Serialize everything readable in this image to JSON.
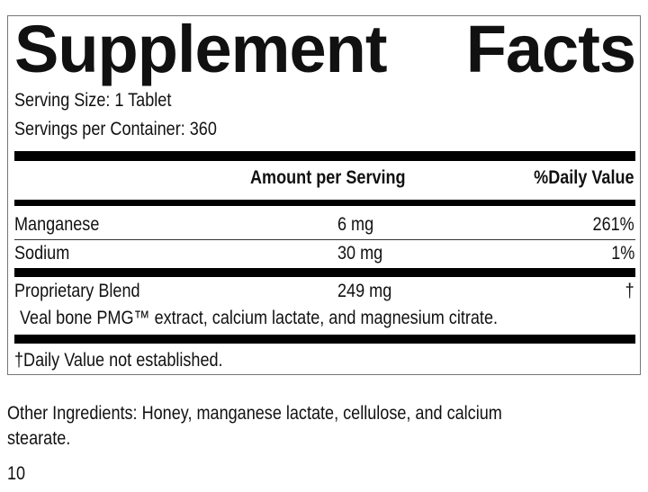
{
  "title_words": [
    "Supplement",
    "Facts"
  ],
  "serving_size": "Serving Size: 1 Tablet",
  "servings_per_container": "Servings per Container: 360",
  "header": {
    "amount": "Amount per Serving",
    "daily_value": "%Daily Value"
  },
  "rows": [
    {
      "name": "Manganese",
      "amount": "6 mg",
      "dv": "261%"
    },
    {
      "name": "Sodium",
      "amount": "30 mg",
      "dv": "1%"
    },
    {
      "name": "Proprietary Blend",
      "amount": "249 mg",
      "dv": "†"
    }
  ],
  "blend_ingredients": "Veal bone PMG™ extract, calcium lactate, and magnesium citrate.",
  "footnote": "†Daily Value not established.",
  "other_ingredients_line1": "Other Ingredients: Honey, manganese lactate, cellulose, and calcium",
  "other_ingredients_line2": "stearate.",
  "code": "10"
}
